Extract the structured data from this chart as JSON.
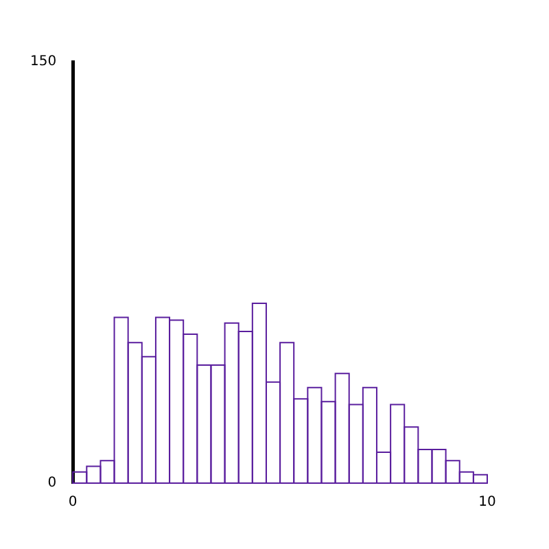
{
  "chart_data": {
    "type": "histogram",
    "bins": [
      0,
      0.333,
      0.667,
      1,
      1.333,
      1.667,
      2,
      2.333,
      2.667,
      3,
      3.333,
      3.667,
      4,
      4.333,
      4.667,
      5,
      5.333,
      5.667,
      6,
      6.333,
      6.667,
      7,
      7.333,
      7.667,
      8,
      8.333,
      8.667,
      9,
      9.333,
      9.667,
      10
    ],
    "values": [
      4,
      6,
      8,
      59,
      50,
      45,
      59,
      58,
      53,
      42,
      42,
      57,
      54,
      64,
      36,
      50,
      30,
      34,
      29,
      39,
      28,
      34,
      11,
      28,
      20,
      12,
      12,
      8,
      4,
      3
    ],
    "color": "#5a1e9e",
    "xlim": [
      0,
      10
    ],
    "xticks": [
      0,
      10
    ],
    "ylim": [
      0,
      150
    ],
    "yticks": [
      0,
      150
    ],
    "grid": false,
    "legend": false
  }
}
